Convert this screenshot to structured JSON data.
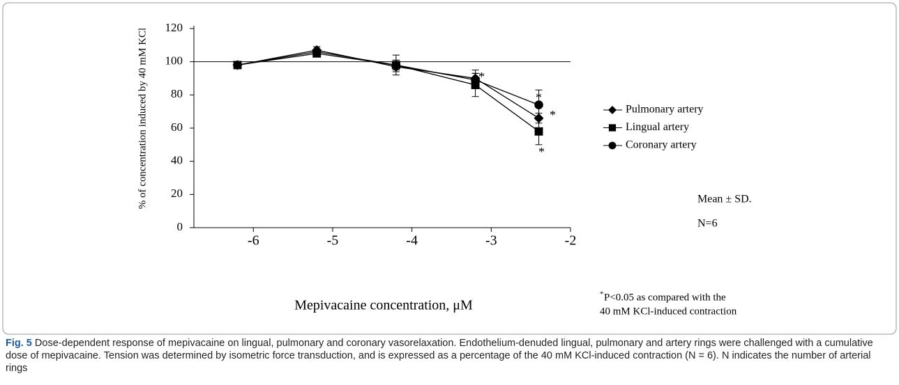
{
  "chart_data": {
    "type": "line",
    "ylabel": "% of concentration induced by 40 mM KCl",
    "xlabel": "Mepivacaine concentration, μM",
    "xlim": [
      -6.75,
      -2
    ],
    "xticks": [
      -6,
      -5,
      -4,
      -3,
      -2
    ],
    "ylim": [
      0,
      120
    ],
    "yticks": [
      0,
      20,
      40,
      60,
      80,
      100,
      120
    ],
    "reference_line": 100,
    "x": [
      -6.2,
      -5.2,
      -4.2,
      -3.2,
      -2.4
    ],
    "series": [
      {
        "name": "Pulmonary artery",
        "marker": "diamond",
        "color": "#000000",
        "values": [
          98,
          107,
          97,
          90,
          66
        ],
        "errors": [
          1,
          2,
          3,
          5,
          3
        ]
      },
      {
        "name": "Lingual artery",
        "marker": "square",
        "color": "#000000",
        "values": [
          98,
          105,
          98,
          86,
          58
        ],
        "errors": [
          1,
          2,
          6,
          7,
          8
        ]
      },
      {
        "name": "Coronary artery",
        "marker": "circle",
        "color": "#000000",
        "values": [
          98,
          106,
          98,
          89,
          74
        ],
        "errors": [
          1,
          3,
          3,
          4,
          9
        ]
      }
    ],
    "annotations": [
      "*",
      "*",
      "*",
      "*"
    ],
    "stats_note": "Mean ± SD.",
    "n_note": "N=6",
    "footnote_mark": "*",
    "footnote_lines": [
      "P<0.05 as compared with the",
      "40 mM KCl-induced contraction"
    ]
  },
  "caption": {
    "label": "Fig. 5",
    "text": "Dose-dependent response of mepivacaine on lingual, pulmonary and coronary vasorelaxation. Endothelium-denuded lingual, pulmonary and artery rings were challenged with a cumulative dose of mepivacaine. Tension was determined by isometric force transduction, and is expressed as a percentage of the 40 mM KCl-induced contraction (N = 6). N indicates the number of arterial rings"
  }
}
